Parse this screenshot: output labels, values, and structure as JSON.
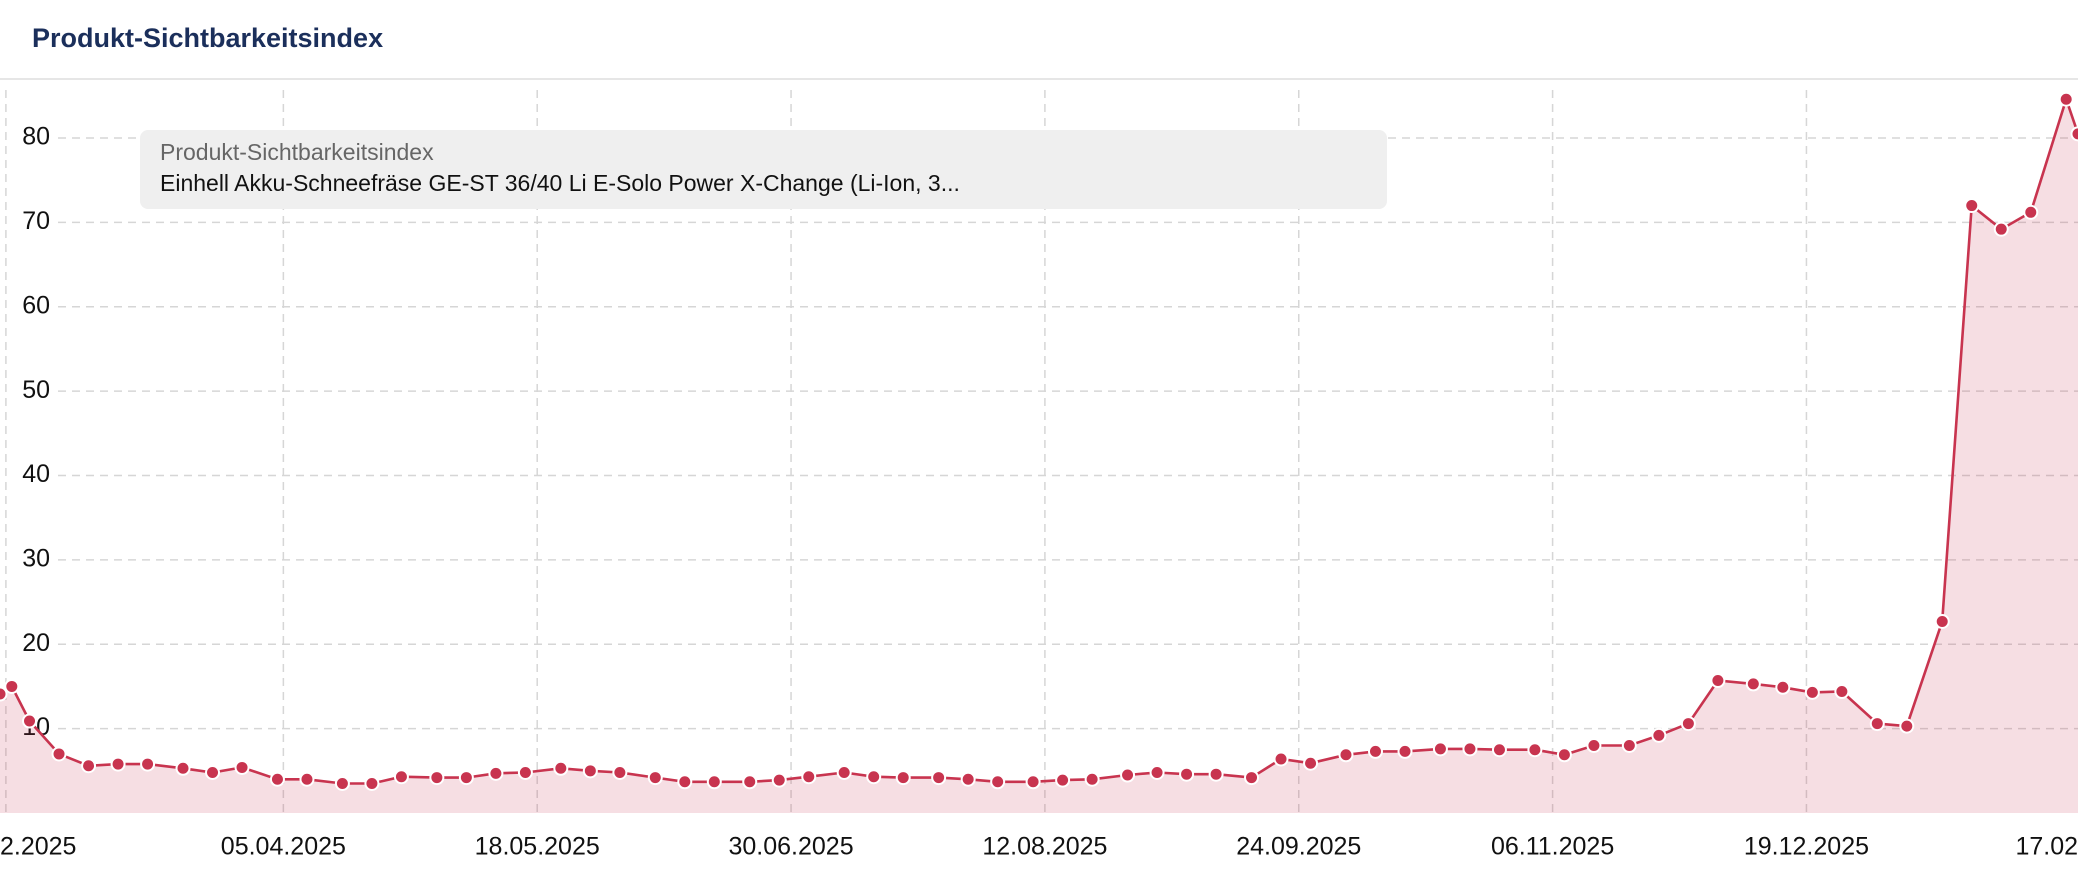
{
  "chart_data": {
    "type": "line",
    "title": "Produkt-Sichtbarkeitsindex",
    "x": [
      "2025-02-16",
      "2025-02-18",
      "2025-02-21",
      "2025-02-26",
      "2025-03-03",
      "2025-03-08",
      "2025-03-13",
      "2025-03-19",
      "2025-03-24",
      "2025-03-29",
      "2025-04-04",
      "2025-04-09",
      "2025-04-15",
      "2025-04-20",
      "2025-04-25",
      "2025-05-01",
      "2025-05-06",
      "2025-05-11",
      "2025-05-16",
      "2025-05-22",
      "2025-05-27",
      "2025-06-01",
      "2025-06-07",
      "2025-06-12",
      "2025-06-17",
      "2025-06-23",
      "2025-06-28",
      "2025-07-03",
      "2025-07-09",
      "2025-07-14",
      "2025-07-19",
      "2025-07-25",
      "2025-07-30",
      "2025-08-04",
      "2025-08-10",
      "2025-08-15",
      "2025-08-20",
      "2025-08-26",
      "2025-08-31",
      "2025-09-05",
      "2025-09-10",
      "2025-09-16",
      "2025-09-21",
      "2025-09-26",
      "2025-10-02",
      "2025-10-07",
      "2025-10-12",
      "2025-10-18",
      "2025-10-23",
      "2025-10-28",
      "2025-11-03",
      "2025-11-08",
      "2025-11-13",
      "2025-11-19",
      "2025-11-24",
      "2025-11-29",
      "2025-12-04",
      "2025-12-10",
      "2025-12-15",
      "2025-12-20",
      "2025-12-25",
      "2025-12-31",
      "2026-01-05",
      "2026-01-11",
      "2026-01-16",
      "2026-01-21",
      "2026-01-26",
      "2026-02-01",
      "2026-02-03"
    ],
    "series": [
      {
        "name": "Einhell Akku-Schneefräse GE-ST 36/40 Li E-Solo Power X-Change (Li-Ion, 3...",
        "color": "#c8344f",
        "values": [
          14.1,
          15.0,
          10.9,
          7.0,
          5.6,
          5.8,
          5.8,
          5.3,
          4.8,
          5.4,
          4.0,
          4.0,
          3.5,
          3.5,
          4.3,
          4.2,
          4.2,
          4.7,
          4.8,
          5.3,
          5.0,
          4.8,
          4.2,
          3.7,
          3.7,
          3.7,
          3.9,
          4.3,
          4.8,
          4.3,
          4.2,
          4.2,
          4.0,
          3.7,
          3.7,
          3.9,
          4.0,
          4.5,
          4.8,
          4.6,
          4.6,
          4.2,
          6.4,
          5.9,
          6.9,
          7.3,
          7.3,
          7.6,
          7.6,
          7.5,
          7.5,
          6.9,
          8.0,
          8.0,
          9.2,
          10.6,
          15.7,
          15.3,
          14.9,
          14.3,
          14.4,
          10.6,
          10.3,
          22.7,
          72.0,
          69.2,
          71.2,
          84.6,
          80.5
        ]
      }
    ],
    "xlim": [
      "2025-02-16",
      "2026-02-03"
    ],
    "xticks": [
      {
        "value": "2025-02-17",
        "label": "2.2025"
      },
      {
        "value": "2025-04-05",
        "label": "05.04.2025"
      },
      {
        "value": "2025-05-18",
        "label": "18.05.2025"
      },
      {
        "value": "2025-06-30",
        "label": "30.06.2025"
      },
      {
        "value": "2025-08-12",
        "label": "12.08.2025"
      },
      {
        "value": "2025-09-24",
        "label": "24.09.2025"
      },
      {
        "value": "2025-11-06",
        "label": "06.11.2025"
      },
      {
        "value": "2025-12-19",
        "label": "19.12.2025"
      },
      {
        "value": "2026-02-17",
        "label": "17.02"
      }
    ],
    "ylim": [
      0,
      87
    ],
    "yticks": [
      10,
      20,
      30,
      40,
      50,
      60,
      70,
      80
    ],
    "grid": true
  }
}
